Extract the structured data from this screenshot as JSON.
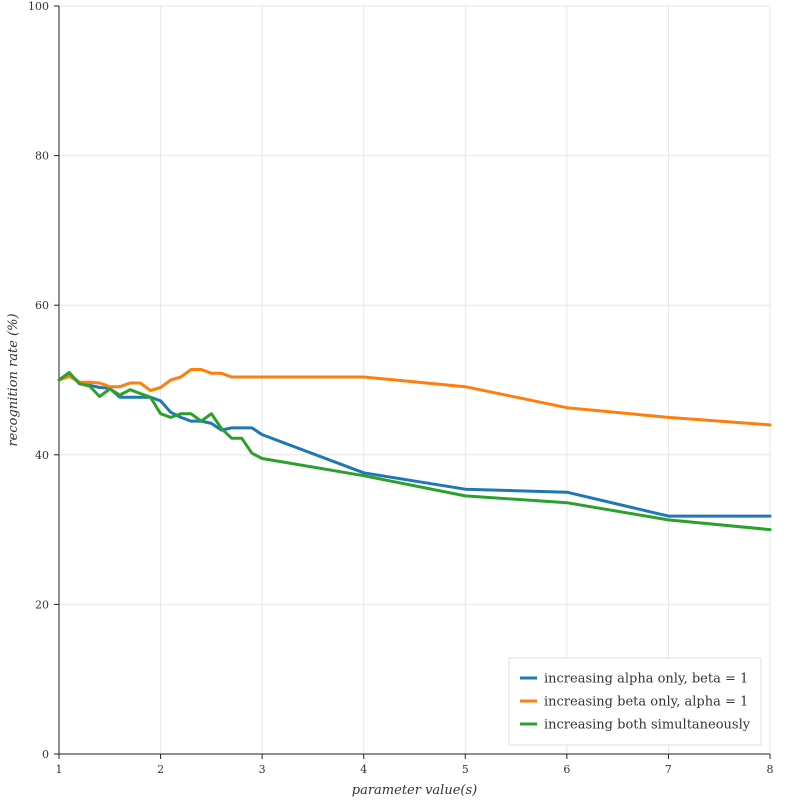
{
  "chart_data": {
    "type": "line",
    "title": "",
    "xlabel": "parameter value(s)",
    "ylabel": "recognition rate (%)",
    "xlim": [
      1,
      8
    ],
    "ylim": [
      0,
      100
    ],
    "xticks": [
      1,
      2,
      3,
      4,
      5,
      6,
      7,
      8
    ],
    "yticks": [
      0,
      20,
      40,
      60,
      80,
      100
    ],
    "grid": true,
    "legend_position": "bottom-right",
    "series": [
      {
        "name": "increasing alpha only, beta = 1",
        "color": "#1f77b4",
        "x": [
          1.0,
          1.1,
          1.2,
          1.3,
          1.4,
          1.5,
          1.6,
          1.7,
          1.8,
          1.9,
          2.0,
          2.1,
          2.2,
          2.3,
          2.4,
          2.5,
          2.6,
          2.7,
          2.8,
          2.9,
          3.0,
          4.0,
          5.0,
          6.0,
          7.0,
          8.0
        ],
        "y": [
          50.0,
          50.7,
          49.7,
          49.3,
          49.0,
          48.9,
          47.7,
          47.7,
          47.7,
          47.7,
          47.2,
          45.7,
          45.0,
          44.5,
          44.5,
          44.2,
          43.3,
          43.6,
          43.6,
          43.6,
          42.7,
          37.6,
          35.4,
          35.0,
          31.8,
          31.8
        ]
      },
      {
        "name": "increasing beta only, alpha = 1",
        "color": "#ff7f0e",
        "x": [
          1.0,
          1.1,
          1.2,
          1.3,
          1.4,
          1.5,
          1.6,
          1.7,
          1.8,
          1.9,
          2.0,
          2.1,
          2.2,
          2.3,
          2.4,
          2.5,
          2.6,
          2.7,
          2.8,
          2.9,
          3.0,
          4.0,
          5.0,
          6.0,
          7.0,
          8.0
        ],
        "y": [
          50.0,
          50.5,
          49.7,
          49.7,
          49.6,
          49.1,
          49.1,
          49.6,
          49.6,
          48.6,
          49.0,
          50.0,
          50.4,
          51.4,
          51.4,
          50.9,
          50.9,
          50.4,
          50.4,
          50.4,
          50.4,
          50.4,
          49.1,
          46.3,
          45.0,
          44.0
        ]
      },
      {
        "name": "increasing both simultaneously",
        "color": "#2ca02c",
        "x": [
          1.0,
          1.1,
          1.2,
          1.3,
          1.4,
          1.5,
          1.6,
          1.7,
          1.8,
          1.9,
          2.0,
          2.1,
          2.2,
          2.3,
          2.4,
          2.5,
          2.6,
          2.7,
          2.8,
          2.9,
          3.0,
          4.0,
          5.0,
          6.0,
          7.0,
          8.0
        ],
        "y": [
          50.0,
          51.0,
          49.5,
          49.2,
          47.8,
          48.8,
          48.0,
          48.7,
          48.2,
          47.7,
          45.5,
          45.0,
          45.5,
          45.5,
          44.5,
          45.5,
          43.5,
          42.2,
          42.2,
          40.2,
          39.5,
          37.2,
          34.5,
          33.6,
          31.3,
          30.0
        ]
      }
    ]
  }
}
